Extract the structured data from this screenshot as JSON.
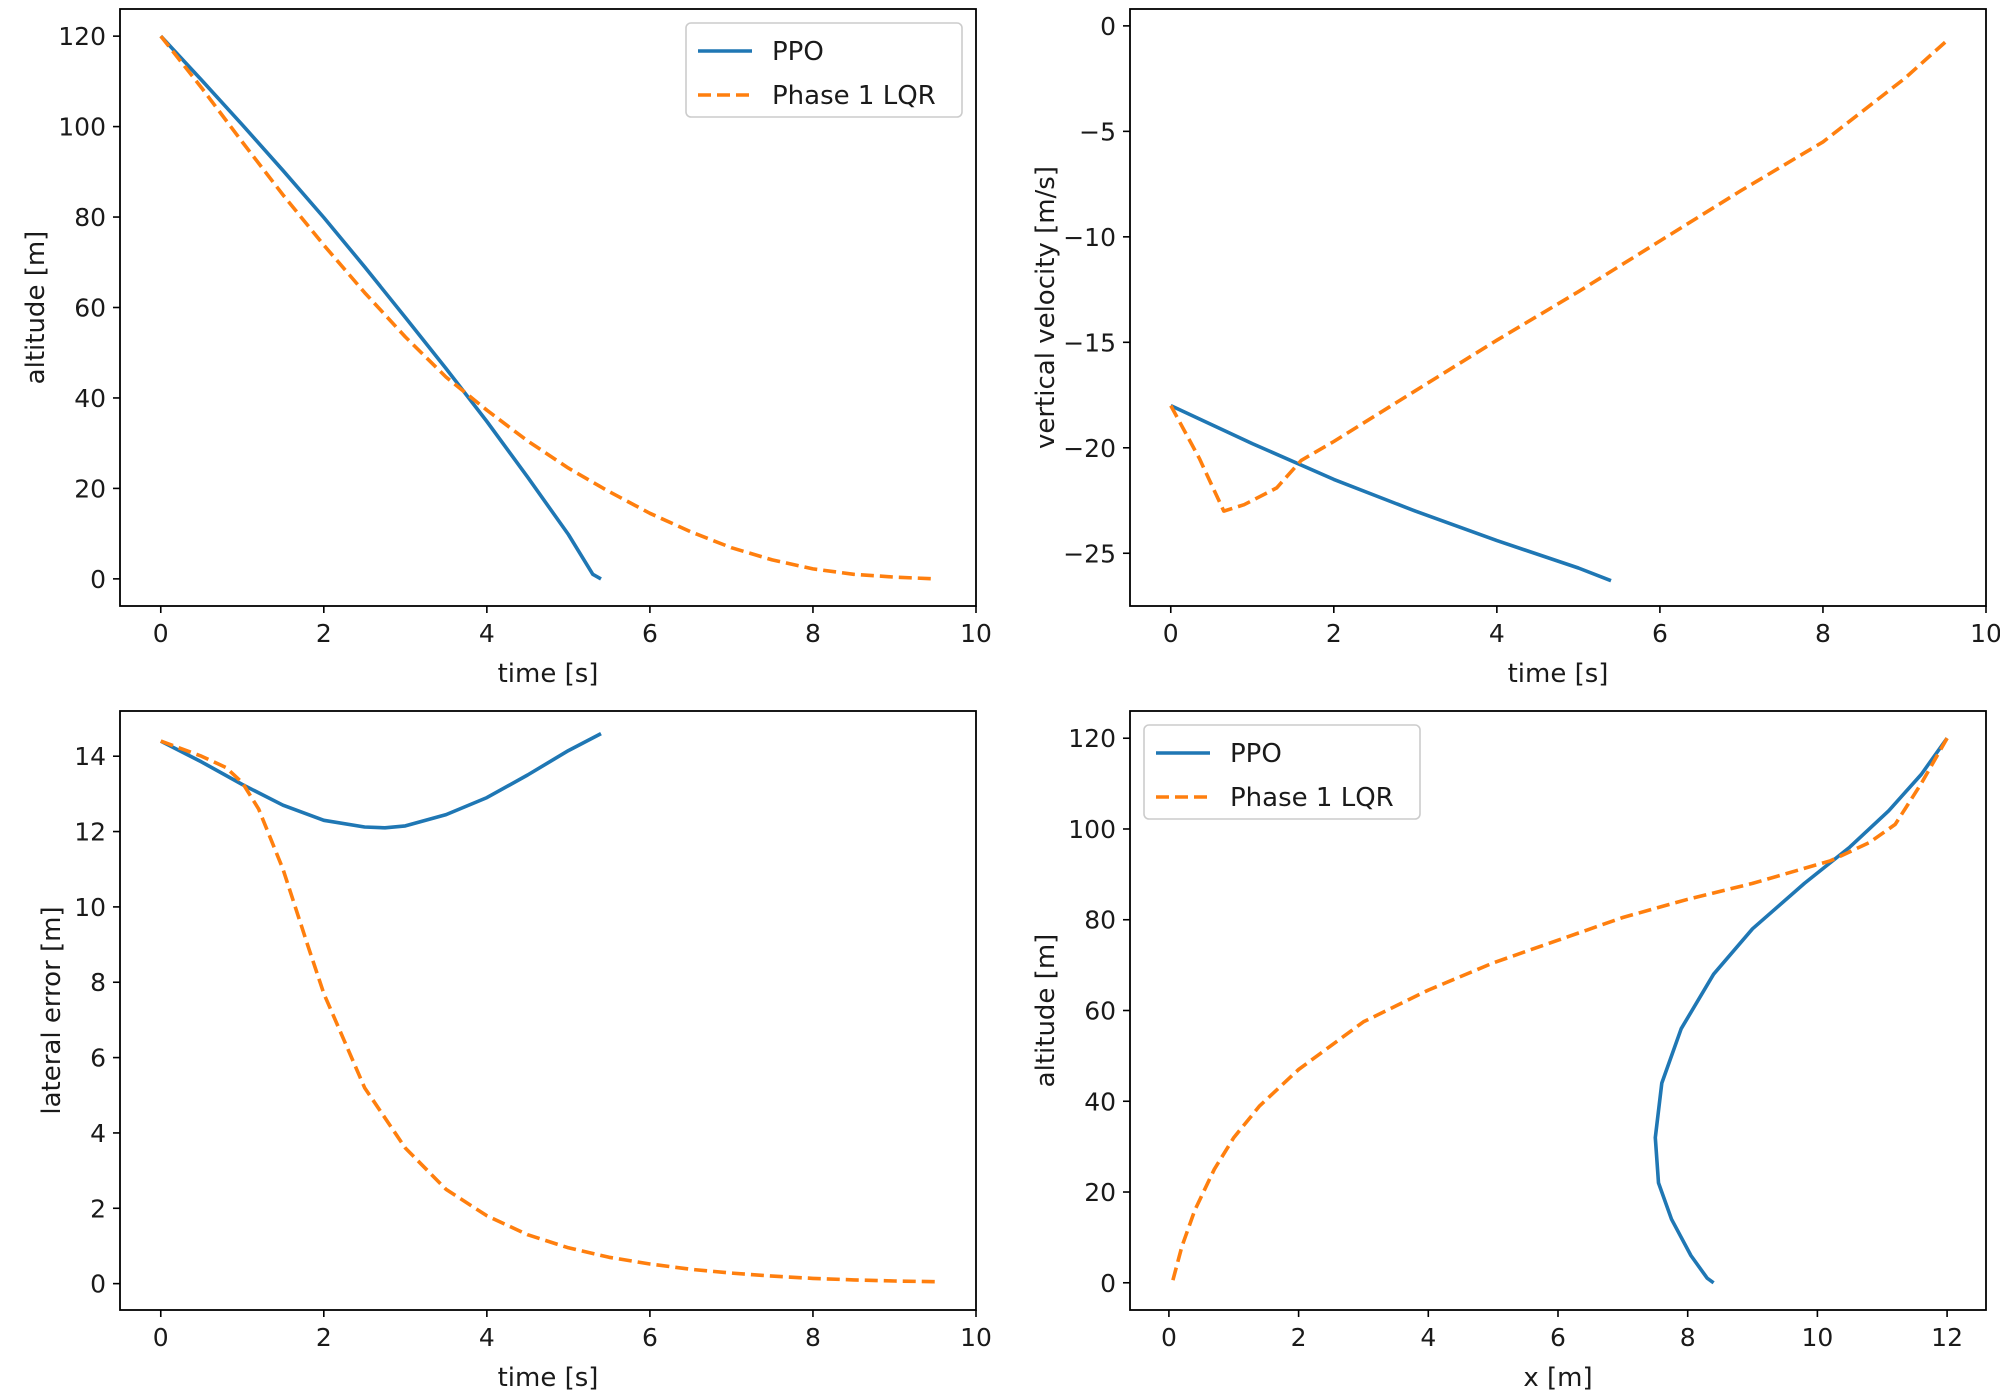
{
  "colors": {
    "ppo": "#1f77b4",
    "lqr": "#ff7f0e"
  },
  "chart_data": [
    {
      "type": "line",
      "xlabel": "time [s]",
      "ylabel": "altitude [m]",
      "xlim": [
        -0.5,
        10
      ],
      "ylim": [
        -6,
        126
      ],
      "xticks": [
        0,
        2,
        4,
        6,
        8,
        10
      ],
      "yticks": [
        0,
        20,
        40,
        60,
        80,
        100,
        120
      ],
      "grid": false,
      "legend": "top-right",
      "series": [
        {
          "name": "PPO",
          "style": "solid",
          "x": [
            0,
            0.5,
            1,
            1.5,
            2,
            2.5,
            3,
            3.5,
            4,
            4.5,
            5,
            5.3,
            5.4
          ],
          "y": [
            120,
            110.3,
            100.4,
            90.3,
            79.9,
            69.0,
            57.8,
            46.5,
            34.8,
            22.5,
            9.8,
            1.0,
            0
          ]
        },
        {
          "name": "Phase 1 LQR",
          "style": "dashed",
          "x": [
            0,
            0.5,
            1,
            1.5,
            2,
            2.5,
            3,
            3.5,
            4,
            4.5,
            5,
            5.5,
            6,
            6.5,
            7,
            7.5,
            8,
            8.5,
            9,
            9.5
          ],
          "y": [
            120,
            108.6,
            96.6,
            84.9,
            73.8,
            63.3,
            53.5,
            44.6,
            37.3,
            30.5,
            24.5,
            19.3,
            14.5,
            10.4,
            6.9,
            4.2,
            2.2,
            1.0,
            0.4,
            0
          ]
        }
      ]
    },
    {
      "type": "line",
      "xlabel": "time [s]",
      "ylabel": "vertical velocity [m/s]",
      "xlim": [
        -0.5,
        10
      ],
      "ylim": [
        -27.5,
        0.8
      ],
      "xticks": [
        0,
        2,
        4,
        6,
        8,
        10
      ],
      "yticks": [
        0,
        -5,
        -10,
        -15,
        -20,
        -25
      ],
      "grid": false,
      "series": [
        {
          "name": "PPO",
          "style": "solid",
          "x": [
            0,
            1,
            2,
            3,
            4,
            5,
            5.4
          ],
          "y": [
            -18,
            -19.8,
            -21.5,
            -23.0,
            -24.4,
            -25.7,
            -26.3
          ]
        },
        {
          "name": "Phase 1 LQR",
          "style": "dashed",
          "x": [
            0,
            0.35,
            0.65,
            0.9,
            1.3,
            1.6,
            2,
            3,
            4,
            5,
            6,
            7,
            8,
            9,
            9.55
          ],
          "y": [
            -18,
            -20.5,
            -23,
            -22.7,
            -21.9,
            -20.6,
            -19.7,
            -17.3,
            -14.9,
            -12.6,
            -10.2,
            -7.8,
            -5.5,
            -2.5,
            -0.6
          ]
        }
      ]
    },
    {
      "type": "line",
      "xlabel": "time [s]",
      "ylabel": "lateral error [m]",
      "xlim": [
        -0.5,
        10
      ],
      "ylim": [
        -0.7,
        15.2
      ],
      "xticks": [
        0,
        2,
        4,
        6,
        8,
        10
      ],
      "yticks": [
        0,
        2,
        4,
        6,
        8,
        10,
        12,
        14
      ],
      "grid": false,
      "series": [
        {
          "name": "PPO",
          "style": "solid",
          "x": [
            0,
            0.5,
            1,
            1.5,
            2,
            2.5,
            2.75,
            3,
            3.5,
            4,
            4.5,
            5,
            5.4
          ],
          "y": [
            14.4,
            13.85,
            13.25,
            12.7,
            12.3,
            12.12,
            12.1,
            12.15,
            12.45,
            12.9,
            13.5,
            14.15,
            14.6
          ]
        },
        {
          "name": "Phase 1 LQR",
          "style": "dashed",
          "x": [
            0,
            0.5,
            0.8,
            1.0,
            1.2,
            1.5,
            1.8,
            2,
            2.5,
            3,
            3.5,
            4,
            4.5,
            5,
            5.5,
            6,
            6.5,
            7,
            7.5,
            8,
            8.5,
            9,
            9.5
          ],
          "y": [
            14.4,
            14.0,
            13.7,
            13.3,
            12.6,
            11.0,
            9.0,
            7.7,
            5.2,
            3.6,
            2.5,
            1.8,
            1.3,
            0.95,
            0.7,
            0.52,
            0.38,
            0.28,
            0.2,
            0.14,
            0.1,
            0.07,
            0.05
          ]
        }
      ]
    },
    {
      "type": "line",
      "xlabel": "x [m]",
      "ylabel": "altitude [m]",
      "xlim": [
        -0.6,
        12.6
      ],
      "ylim": [
        -6,
        126
      ],
      "xticks": [
        0,
        2,
        4,
        6,
        8,
        10,
        12
      ],
      "yticks": [
        0,
        20,
        40,
        60,
        80,
        100,
        120
      ],
      "grid": false,
      "legend": "top-left",
      "series": [
        {
          "name": "PPO",
          "style": "solid",
          "x": [
            12,
            11.6,
            11.1,
            10.5,
            9.8,
            9.0,
            8.4,
            7.9,
            7.6,
            7.5,
            7.55,
            7.75,
            8.05,
            8.3,
            8.4
          ],
          "y": [
            120,
            112,
            104,
            96,
            88,
            78,
            68,
            56,
            44,
            32,
            22,
            14,
            6,
            1,
            0
          ]
        },
        {
          "name": "Phase 1 LQR",
          "style": "dashed",
          "x": [
            12,
            11.6,
            11.2,
            10.8,
            10.2,
            9.0,
            8.0,
            7.0,
            6.0,
            5.0,
            4.0,
            3.0,
            2.0,
            1.4,
            1.0,
            0.7,
            0.4,
            0.2,
            0.05
          ],
          "y": [
            120,
            110,
            101,
            97,
            93,
            88,
            84.5,
            80.5,
            75.5,
            70.5,
            64.5,
            57.5,
            47,
            39,
            32,
            25,
            16,
            8,
            0
          ]
        }
      ]
    }
  ]
}
